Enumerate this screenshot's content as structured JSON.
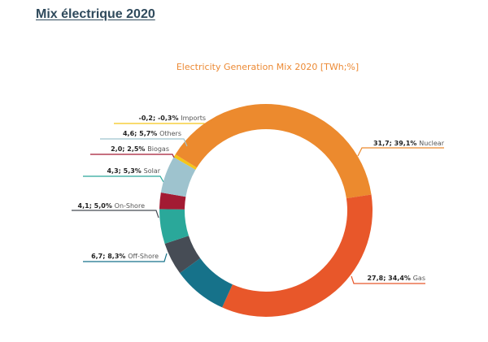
{
  "page": {
    "title": "Mix électrique 2020"
  },
  "chart_data": {
    "type": "pie",
    "variant": "donut",
    "title": "Electricity Generation Mix 2020 [TWh;%]",
    "unit": "TWh",
    "slices": [
      {
        "name": "Imports",
        "value": -0.2,
        "percent": -0.3,
        "value_label": "-0,2; -0,3%",
        "color": "#f5c518"
      },
      {
        "name": "Nuclear",
        "value": 31.7,
        "percent": 39.1,
        "value_label": "31,7; 39,1%",
        "color": "#ec8a2e"
      },
      {
        "name": "Gas",
        "value": 27.8,
        "percent": 34.4,
        "value_label": "27,8; 34,4%",
        "color": "#e8572a"
      },
      {
        "name": "Off-Shore",
        "value": 6.7,
        "percent": 8.3,
        "value_label": "6,7; 8,3%",
        "color": "#16728a"
      },
      {
        "name": "On-Shore",
        "value": 4.1,
        "percent": 5.0,
        "value_label": "4,1; 5,0%",
        "color": "#464c55"
      },
      {
        "name": "Solar",
        "value": 4.3,
        "percent": 5.3,
        "value_label": "4,3; 5,3%",
        "color": "#2aa89a"
      },
      {
        "name": "Biogas",
        "value": 2.0,
        "percent": 2.5,
        "value_label": "2,0; 2,5%",
        "color": "#a31b33"
      },
      {
        "name": "Others",
        "value": 4.6,
        "percent": 5.7,
        "value_label": "4,6; 5,7%",
        "color": "#9ec3ce"
      }
    ],
    "legend": "none"
  },
  "colors": {
    "title": "#2f4a5c",
    "chart_title": "#ec8a35"
  }
}
